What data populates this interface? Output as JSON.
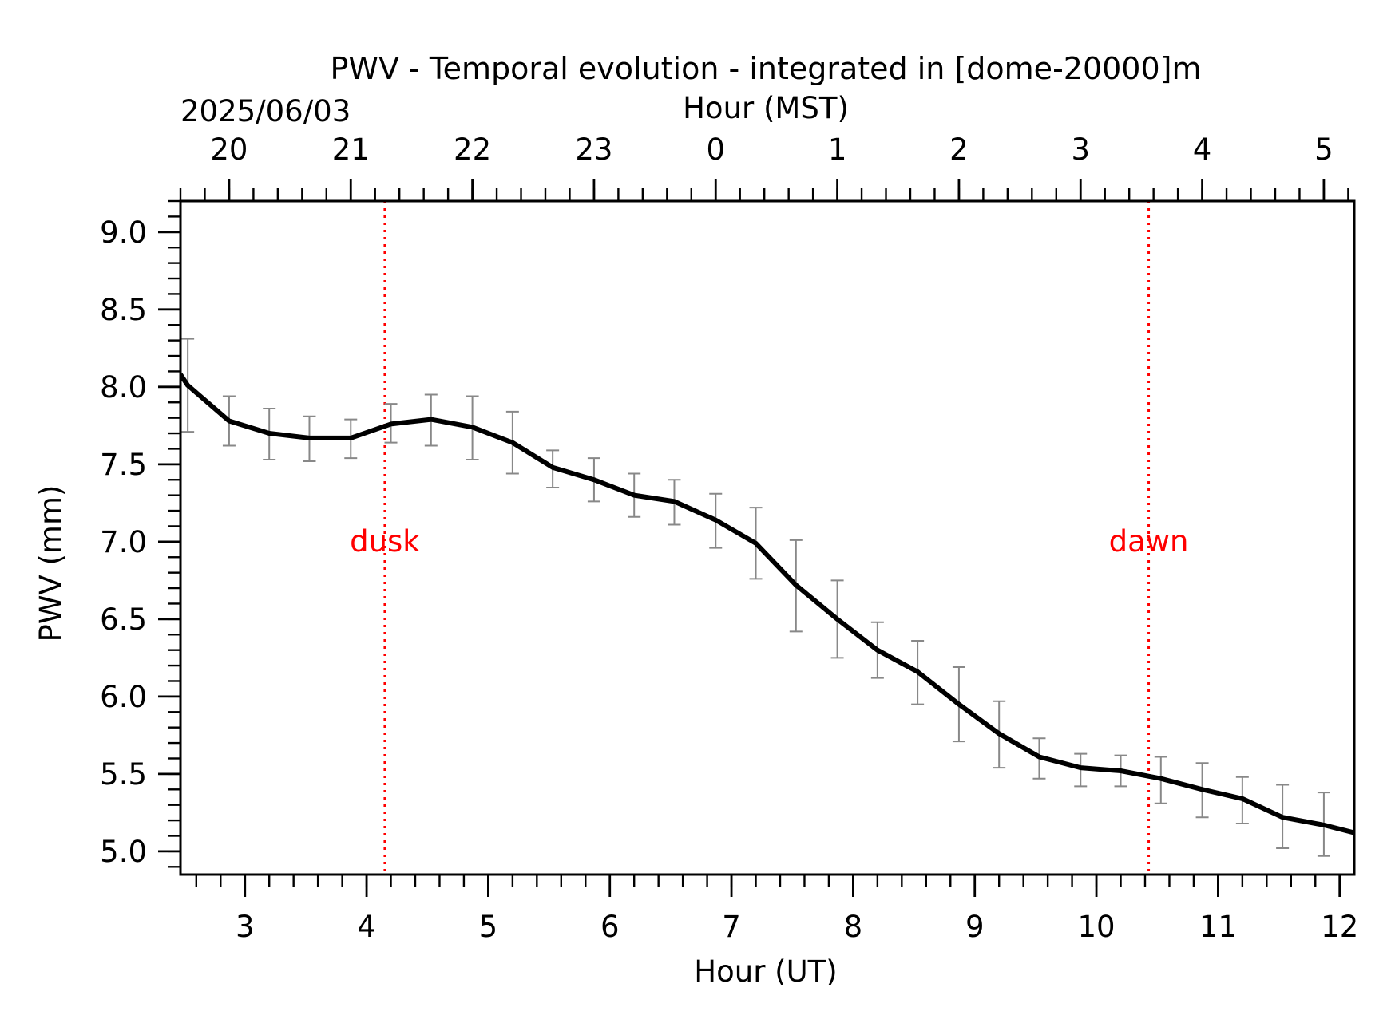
{
  "chart_data": {
    "type": "line",
    "title": "PWV - Temporal evolution - integrated in [dome-20000]m",
    "date_label": "2025/06/03",
    "xlabel": "Hour (UT)",
    "x2label": "Hour (MST)",
    "ylabel": "PWV (mm)",
    "xlim": [
      2.47,
      12.12
    ],
    "ylim": [
      4.85,
      9.2
    ],
    "x_ticks": [
      3,
      4,
      5,
      6,
      7,
      8,
      9,
      10,
      11,
      12
    ],
    "x_tick_labels": [
      "3",
      "4",
      "5",
      "6",
      "7",
      "8",
      "9",
      "10",
      "11",
      "12"
    ],
    "x_minor_step": 0.2,
    "x2_ticks": [
      2.87,
      3.87,
      4.87,
      5.87,
      6.87,
      7.87,
      8.87,
      9.87,
      10.87,
      11.87
    ],
    "x2_tick_labels": [
      "20",
      "21",
      "22",
      "23",
      "0",
      "1",
      "2",
      "3",
      "4",
      "5"
    ],
    "y_ticks": [
      5.0,
      5.5,
      6.0,
      6.5,
      7.0,
      7.5,
      8.0,
      8.5,
      9.0
    ],
    "y_tick_labels": [
      "5.0",
      "5.5",
      "6.0",
      "6.5",
      "7.0",
      "7.5",
      "8.0",
      "8.5",
      "9.0"
    ],
    "y_minor_step": 0.1,
    "grid": false,
    "series": [
      {
        "color": "#000000",
        "x": [
          2.47,
          2.53,
          2.87,
          3.2,
          3.53,
          3.87,
          4.2,
          4.53,
          4.87,
          5.2,
          5.53,
          5.87,
          6.2,
          6.53,
          6.87,
          7.2,
          7.53,
          7.87,
          8.2,
          8.53,
          8.87,
          9.2,
          9.53,
          9.87,
          10.2,
          10.53,
          10.87,
          11.2,
          11.53,
          11.87,
          12.12
        ],
        "y": [
          8.08,
          8.01,
          7.78,
          7.7,
          7.67,
          7.67,
          7.76,
          7.79,
          7.74,
          7.64,
          7.48,
          7.4,
          7.3,
          7.26,
          7.14,
          6.99,
          6.72,
          6.5,
          6.3,
          6.16,
          5.95,
          5.76,
          5.61,
          5.54,
          5.52,
          5.47,
          5.4,
          5.34,
          5.22,
          5.17,
          5.12
        ]
      }
    ],
    "error_bars": {
      "color": "#888888",
      "x": [
        2.53,
        2.87,
        3.2,
        3.53,
        3.87,
        4.2,
        4.53,
        4.87,
        5.2,
        5.53,
        5.87,
        6.2,
        6.53,
        6.87,
        7.2,
        7.53,
        7.87,
        8.2,
        8.53,
        8.87,
        9.2,
        9.53,
        9.87,
        10.2,
        10.53,
        10.87,
        11.2,
        11.53,
        11.87
      ],
      "low": [
        7.71,
        7.62,
        7.53,
        7.52,
        7.54,
        7.64,
        7.62,
        7.53,
        7.44,
        7.35,
        7.26,
        7.16,
        7.11,
        6.96,
        6.76,
        6.42,
        6.25,
        6.12,
        5.95,
        5.71,
        5.54,
        5.47,
        5.42,
        5.42,
        5.31,
        5.22,
        5.18,
        5.02,
        4.97
      ],
      "high": [
        8.31,
        7.94,
        7.86,
        7.81,
        7.79,
        7.89,
        7.95,
        7.94,
        7.84,
        7.59,
        7.54,
        7.44,
        7.4,
        7.31,
        7.22,
        7.01,
        6.75,
        6.48,
        6.36,
        6.19,
        5.97,
        5.73,
        5.63,
        5.62,
        5.61,
        5.57,
        5.48,
        5.43,
        5.38
      ]
    },
    "events": [
      {
        "label": "dusk",
        "x": 4.15,
        "color": "#ff0000"
      },
      {
        "label": "dawn",
        "x": 10.43,
        "color": "#ff0000"
      }
    ]
  }
}
